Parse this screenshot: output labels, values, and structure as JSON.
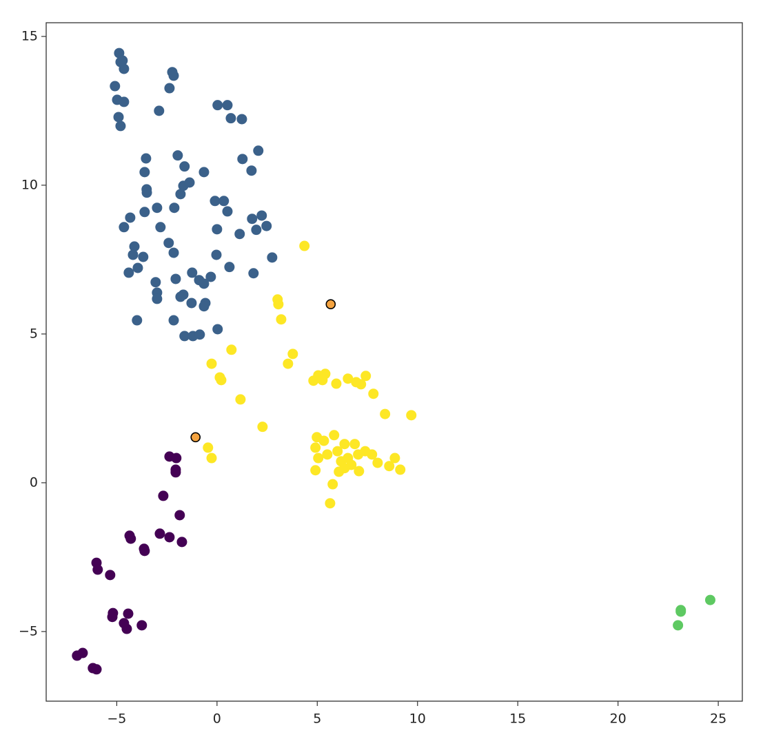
{
  "chart_data": {
    "type": "scatter",
    "xlim": [
      -8.52,
      26.2
    ],
    "ylim": [
      -7.34,
      15.46
    ],
    "xticks": [
      {
        "value": -5,
        "label": "−5"
      },
      0,
      5,
      10,
      15,
      20,
      25
    ],
    "yticks": [
      {
        "value": -5,
        "label": "−5"
      },
      0,
      5,
      10,
      15
    ],
    "series": [
      {
        "color": "#3b618a",
        "x": [
          -4.88,
          -4.81,
          -4.64,
          -4.71,
          -2.23,
          -2.16,
          -2.37,
          -5.09,
          -4.98,
          -4.64,
          -4.91,
          -4.81,
          -2.89,
          0.03,
          0.52,
          0.69,
          1.24,
          2.06,
          -1.96,
          -3.54,
          -3.61,
          -1.62,
          -0.65,
          1.27,
          1.72,
          -3.51,
          -1.68,
          -1.37,
          -1.82,
          -3.5,
          -0.1,
          0.34,
          0.52,
          -3.61,
          -2.99,
          -2.13,
          -4.33,
          -4.64,
          -2.82,
          0,
          1.13,
          1.75,
          2.23,
          1.96,
          2.47,
          -2.41,
          -4.12,
          -4.19,
          -3.68,
          -2.16,
          -0.03,
          2.75,
          0.62,
          -3.95,
          -4.4,
          1.82,
          -1.24,
          -0.89,
          -2.06,
          -3.06,
          -0.31,
          -0.65,
          -2.99,
          -2.99,
          -1.68,
          -1.82,
          -1.27,
          -0.58,
          -0.65,
          -3.99,
          -2.16,
          0.03,
          -1.62,
          -1.2,
          -0.86
        ],
        "y": [
          14.44,
          14.14,
          13.91,
          14.19,
          13.8,
          13.68,
          13.26,
          13.33,
          12.87,
          12.8,
          12.29,
          11.99,
          12.5,
          12.69,
          12.69,
          12.25,
          12.22,
          11.16,
          11.0,
          10.9,
          10.44,
          10.63,
          10.44,
          10.88,
          10.49,
          9.86,
          9.98,
          10.09,
          9.7,
          9.75,
          9.47,
          9.47,
          9.12,
          9.1,
          9.24,
          9.24,
          8.91,
          8.59,
          8.59,
          8.52,
          8.36,
          8.87,
          8.98,
          8.5,
          8.63,
          8.06,
          7.94,
          7.66,
          7.59,
          7.73,
          7.66,
          7.57,
          7.25,
          7.22,
          7.06,
          7.04,
          7.06,
          6.81,
          6.85,
          6.74,
          6.92,
          6.69,
          6.39,
          6.18,
          6.32,
          6.25,
          6.04,
          6.04,
          5.93,
          5.46,
          5.46,
          5.16,
          4.93,
          4.93,
          4.98
        ]
      },
      {
        "color": "#fde725",
        "x": [
          4.36,
          3.02,
          3.06,
          3.2,
          0.72,
          -0.27,
          3.78,
          3.54,
          0.14,
          0.21,
          1.17,
          2.27,
          4.81,
          5.05,
          5.4,
          5.26,
          5.95,
          6.53,
          6.94,
          7.18,
          7.42,
          7.8,
          8.38,
          9.69,
          -0.45,
          -0.27,
          4.98,
          4.91,
          5.33,
          5.84,
          5.05,
          5.5,
          6.01,
          6.36,
          6.19,
          6.53,
          6.87,
          7.04,
          7.39,
          7.73,
          8.01,
          8.59,
          8.87,
          9.14,
          4.91,
          6.08,
          7.08,
          5.77,
          5.64,
          6.36,
          6.7
        ],
        "y": [
          7.96,
          6.16,
          6.0,
          5.49,
          4.47,
          4.0,
          4.33,
          4.0,
          3.54,
          3.45,
          2.8,
          1.88,
          3.43,
          3.61,
          3.66,
          3.45,
          3.33,
          3.5,
          3.38,
          3.31,
          3.59,
          2.99,
          2.31,
          2.27,
          1.18,
          0.83,
          1.53,
          1.18,
          1.41,
          1.6,
          0.83,
          0.95,
          1.06,
          1.3,
          0.72,
          0.83,
          1.3,
          0.95,
          1.06,
          0.95,
          0.67,
          0.56,
          0.83,
          0.44,
          0.42,
          0.37,
          0.39,
          -0.05,
          -0.69,
          0.49,
          0.6
        ]
      },
      {
        "color": "#440154",
        "x": [
          -2.37,
          -2.03,
          -2.06,
          -2.06,
          -2.68,
          -1.86,
          -4.36,
          -4.3,
          -2.85,
          -2.37,
          -1.75,
          -3.64,
          -3.61,
          -6.01,
          -5.95,
          -5.33,
          -5.19,
          -5.22,
          -4.43,
          -4.5,
          -3.75,
          -6.7,
          -6.98,
          -6.19,
          -6.01,
          -4.64
        ],
        "y": [
          0.88,
          0.83,
          0.44,
          0.35,
          -0.44,
          -1.09,
          -1.78,
          -1.88,
          -1.71,
          -1.83,
          -1.99,
          -2.22,
          -2.29,
          -2.69,
          -2.92,
          -3.1,
          -4.38,
          -4.51,
          -4.4,
          -4.91,
          -4.79,
          -5.72,
          -5.81,
          -6.23,
          -6.27,
          -4.72
        ]
      },
      {
        "color": "#5ec962",
        "x": [
          23.13,
          22.99,
          24.6,
          23.13
        ],
        "y": [
          -4.28,
          -4.79,
          -3.94,
          -4.33
        ]
      },
      {
        "color": "#f4a340",
        "edgecolor": "#000000",
        "x": [
          -1.07,
          5.67
        ],
        "y": [
          1.53,
          6.0
        ]
      }
    ]
  }
}
